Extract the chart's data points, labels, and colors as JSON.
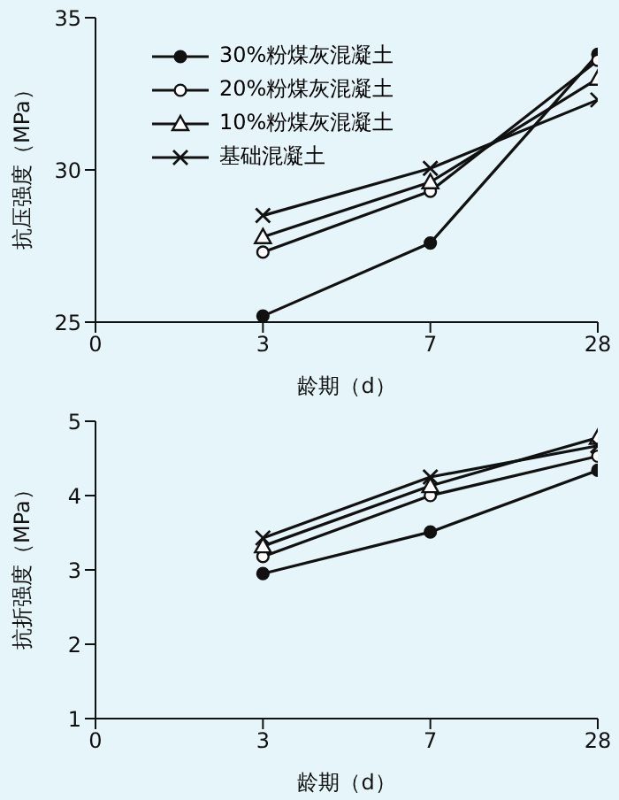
{
  "chart_data": [
    {
      "type": "line",
      "xlabel": "龄期（d）",
      "ylabel": "抗压强度（MPa）",
      "categories": [
        "0",
        "3",
        "7",
        "28"
      ],
      "ylim": [
        25,
        35
      ],
      "yticks": [
        25,
        30,
        35
      ],
      "legend": "top",
      "grid": false,
      "series": [
        {
          "name": "30%粉煤灰混凝土",
          "color": "#111111",
          "marker": "circle",
          "values": [
            null,
            25.2,
            27.6,
            33.8
          ]
        },
        {
          "name": "20%粉煤灰混凝土",
          "color": "#111111",
          "marker": "circle",
          "values": [
            null,
            27.3,
            29.3,
            33.6
          ]
        },
        {
          "name": "10%粉煤灰混凝土",
          "color": "#111111",
          "marker": "triangle",
          "values": [
            null,
            27.8,
            29.6,
            33.0
          ]
        },
        {
          "name": "基础混凝土",
          "color": "#111111",
          "marker": "cross",
          "values": [
            null,
            28.5,
            30.05,
            32.3
          ]
        }
      ]
    },
    {
      "type": "line",
      "xlabel": "龄期（d）",
      "ylabel": "抗折强度（MPa）",
      "categories": [
        "0",
        "3",
        "7",
        "28"
      ],
      "ylim": [
        1,
        5
      ],
      "yticks": [
        1,
        2,
        3,
        4,
        5
      ],
      "legend": false,
      "grid": false,
      "series": [
        {
          "color": "#111111",
          "marker": "circle",
          "values": [
            null,
            2.95,
            3.51,
            4.34
          ]
        },
        {
          "color": "#111111",
          "marker": "circle",
          "values": [
            null,
            3.18,
            4.0,
            4.53
          ]
        },
        {
          "color": "#111111",
          "marker": "triangle",
          "values": [
            null,
            3.32,
            4.13,
            4.78
          ]
        },
        {
          "color": "#111111",
          "marker": "cross",
          "values": [
            null,
            3.43,
            4.25,
            4.67
          ]
        }
      ]
    }
  ]
}
